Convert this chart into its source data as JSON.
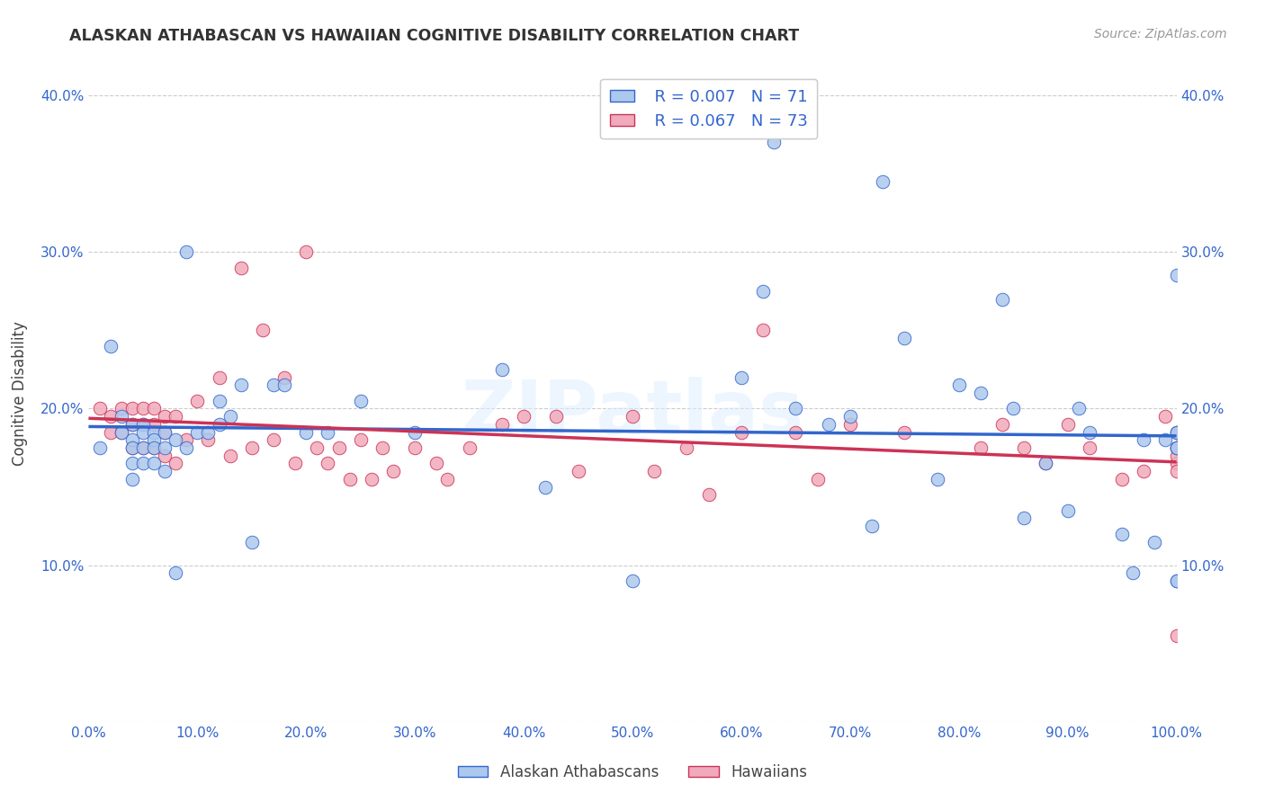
{
  "title": "ALASKAN ATHABASCAN VS HAWAIIAN COGNITIVE DISABILITY CORRELATION CHART",
  "source": "Source: ZipAtlas.com",
  "ylabel": "Cognitive Disability",
  "legend_labels": [
    "Alaskan Athabascans",
    "Hawaiians"
  ],
  "r_values": [
    0.007,
    0.067
  ],
  "n_values": [
    71,
    73
  ],
  "color_blue": "#adc8ed",
  "color_pink": "#f0aabb",
  "line_color_blue": "#3366cc",
  "line_color_pink": "#cc3355",
  "xlim": [
    0.0,
    1.0
  ],
  "ylim": [
    0.0,
    0.42
  ],
  "xticks": [
    0.0,
    0.1,
    0.2,
    0.3,
    0.4,
    0.5,
    0.6,
    0.7,
    0.8,
    0.9,
    1.0
  ],
  "yticks": [
    0.0,
    0.1,
    0.2,
    0.3,
    0.4
  ],
  "xtick_labels": [
    "0.0%",
    "10.0%",
    "20.0%",
    "30.0%",
    "40.0%",
    "50.0%",
    "60.0%",
    "70.0%",
    "80.0%",
    "90.0%",
    "100.0%"
  ],
  "ytick_labels_left": [
    "",
    "10.0%",
    "20.0%",
    "30.0%",
    "40.0%"
  ],
  "ytick_labels_right": [
    "",
    "10.0%",
    "20.0%",
    "30.0%",
    "40.0%"
  ],
  "blue_x": [
    0.01,
    0.02,
    0.03,
    0.03,
    0.04,
    0.04,
    0.04,
    0.04,
    0.04,
    0.05,
    0.05,
    0.05,
    0.05,
    0.06,
    0.06,
    0.06,
    0.06,
    0.07,
    0.07,
    0.07,
    0.08,
    0.08,
    0.09,
    0.09,
    0.1,
    0.11,
    0.12,
    0.12,
    0.13,
    0.14,
    0.15,
    0.17,
    0.18,
    0.2,
    0.22,
    0.25,
    0.3,
    0.38,
    0.42,
    0.5,
    0.6,
    0.62,
    0.63,
    0.65,
    0.68,
    0.7,
    0.72,
    0.73,
    0.75,
    0.78,
    0.8,
    0.82,
    0.84,
    0.85,
    0.86,
    0.88,
    0.9,
    0.91,
    0.92,
    0.95,
    0.96,
    0.97,
    0.98,
    0.99,
    1.0,
    1.0,
    1.0,
    1.0,
    1.0,
    1.0,
    1.0
  ],
  "blue_y": [
    0.175,
    0.24,
    0.185,
    0.195,
    0.19,
    0.18,
    0.175,
    0.165,
    0.155,
    0.19,
    0.185,
    0.175,
    0.165,
    0.185,
    0.18,
    0.175,
    0.165,
    0.185,
    0.175,
    0.16,
    0.18,
    0.095,
    0.3,
    0.175,
    0.185,
    0.185,
    0.205,
    0.19,
    0.195,
    0.215,
    0.115,
    0.215,
    0.215,
    0.185,
    0.185,
    0.205,
    0.185,
    0.225,
    0.15,
    0.09,
    0.22,
    0.275,
    0.37,
    0.2,
    0.19,
    0.195,
    0.125,
    0.345,
    0.245,
    0.155,
    0.215,
    0.21,
    0.27,
    0.2,
    0.13,
    0.165,
    0.135,
    0.2,
    0.185,
    0.12,
    0.095,
    0.18,
    0.115,
    0.18,
    0.185,
    0.185,
    0.175,
    0.285,
    0.175,
    0.09,
    0.09
  ],
  "pink_x": [
    0.01,
    0.02,
    0.02,
    0.03,
    0.03,
    0.04,
    0.04,
    0.04,
    0.05,
    0.05,
    0.05,
    0.06,
    0.06,
    0.06,
    0.07,
    0.07,
    0.07,
    0.08,
    0.08,
    0.09,
    0.1,
    0.11,
    0.12,
    0.13,
    0.14,
    0.15,
    0.16,
    0.17,
    0.18,
    0.19,
    0.2,
    0.21,
    0.22,
    0.23,
    0.24,
    0.25,
    0.26,
    0.27,
    0.28,
    0.3,
    0.32,
    0.33,
    0.35,
    0.38,
    0.4,
    0.43,
    0.45,
    0.5,
    0.52,
    0.55,
    0.57,
    0.6,
    0.62,
    0.65,
    0.67,
    0.7,
    0.75,
    0.82,
    0.84,
    0.86,
    0.88,
    0.9,
    0.92,
    0.95,
    0.97,
    0.99,
    1.0,
    1.0,
    1.0,
    1.0,
    1.0,
    1.0,
    1.0
  ],
  "pink_y": [
    0.2,
    0.195,
    0.185,
    0.2,
    0.185,
    0.2,
    0.19,
    0.175,
    0.2,
    0.19,
    0.175,
    0.2,
    0.19,
    0.175,
    0.195,
    0.185,
    0.17,
    0.195,
    0.165,
    0.18,
    0.205,
    0.18,
    0.22,
    0.17,
    0.29,
    0.175,
    0.25,
    0.18,
    0.22,
    0.165,
    0.3,
    0.175,
    0.165,
    0.175,
    0.155,
    0.18,
    0.155,
    0.175,
    0.16,
    0.175,
    0.165,
    0.155,
    0.175,
    0.19,
    0.195,
    0.195,
    0.16,
    0.195,
    0.16,
    0.175,
    0.145,
    0.185,
    0.25,
    0.185,
    0.155,
    0.19,
    0.185,
    0.175,
    0.19,
    0.175,
    0.165,
    0.19,
    0.175,
    0.155,
    0.16,
    0.195,
    0.185,
    0.175,
    0.165,
    0.175,
    0.16,
    0.17,
    0.055
  ],
  "watermark": "ZIPatlas",
  "background_color": "#ffffff",
  "grid_color": "#cccccc"
}
